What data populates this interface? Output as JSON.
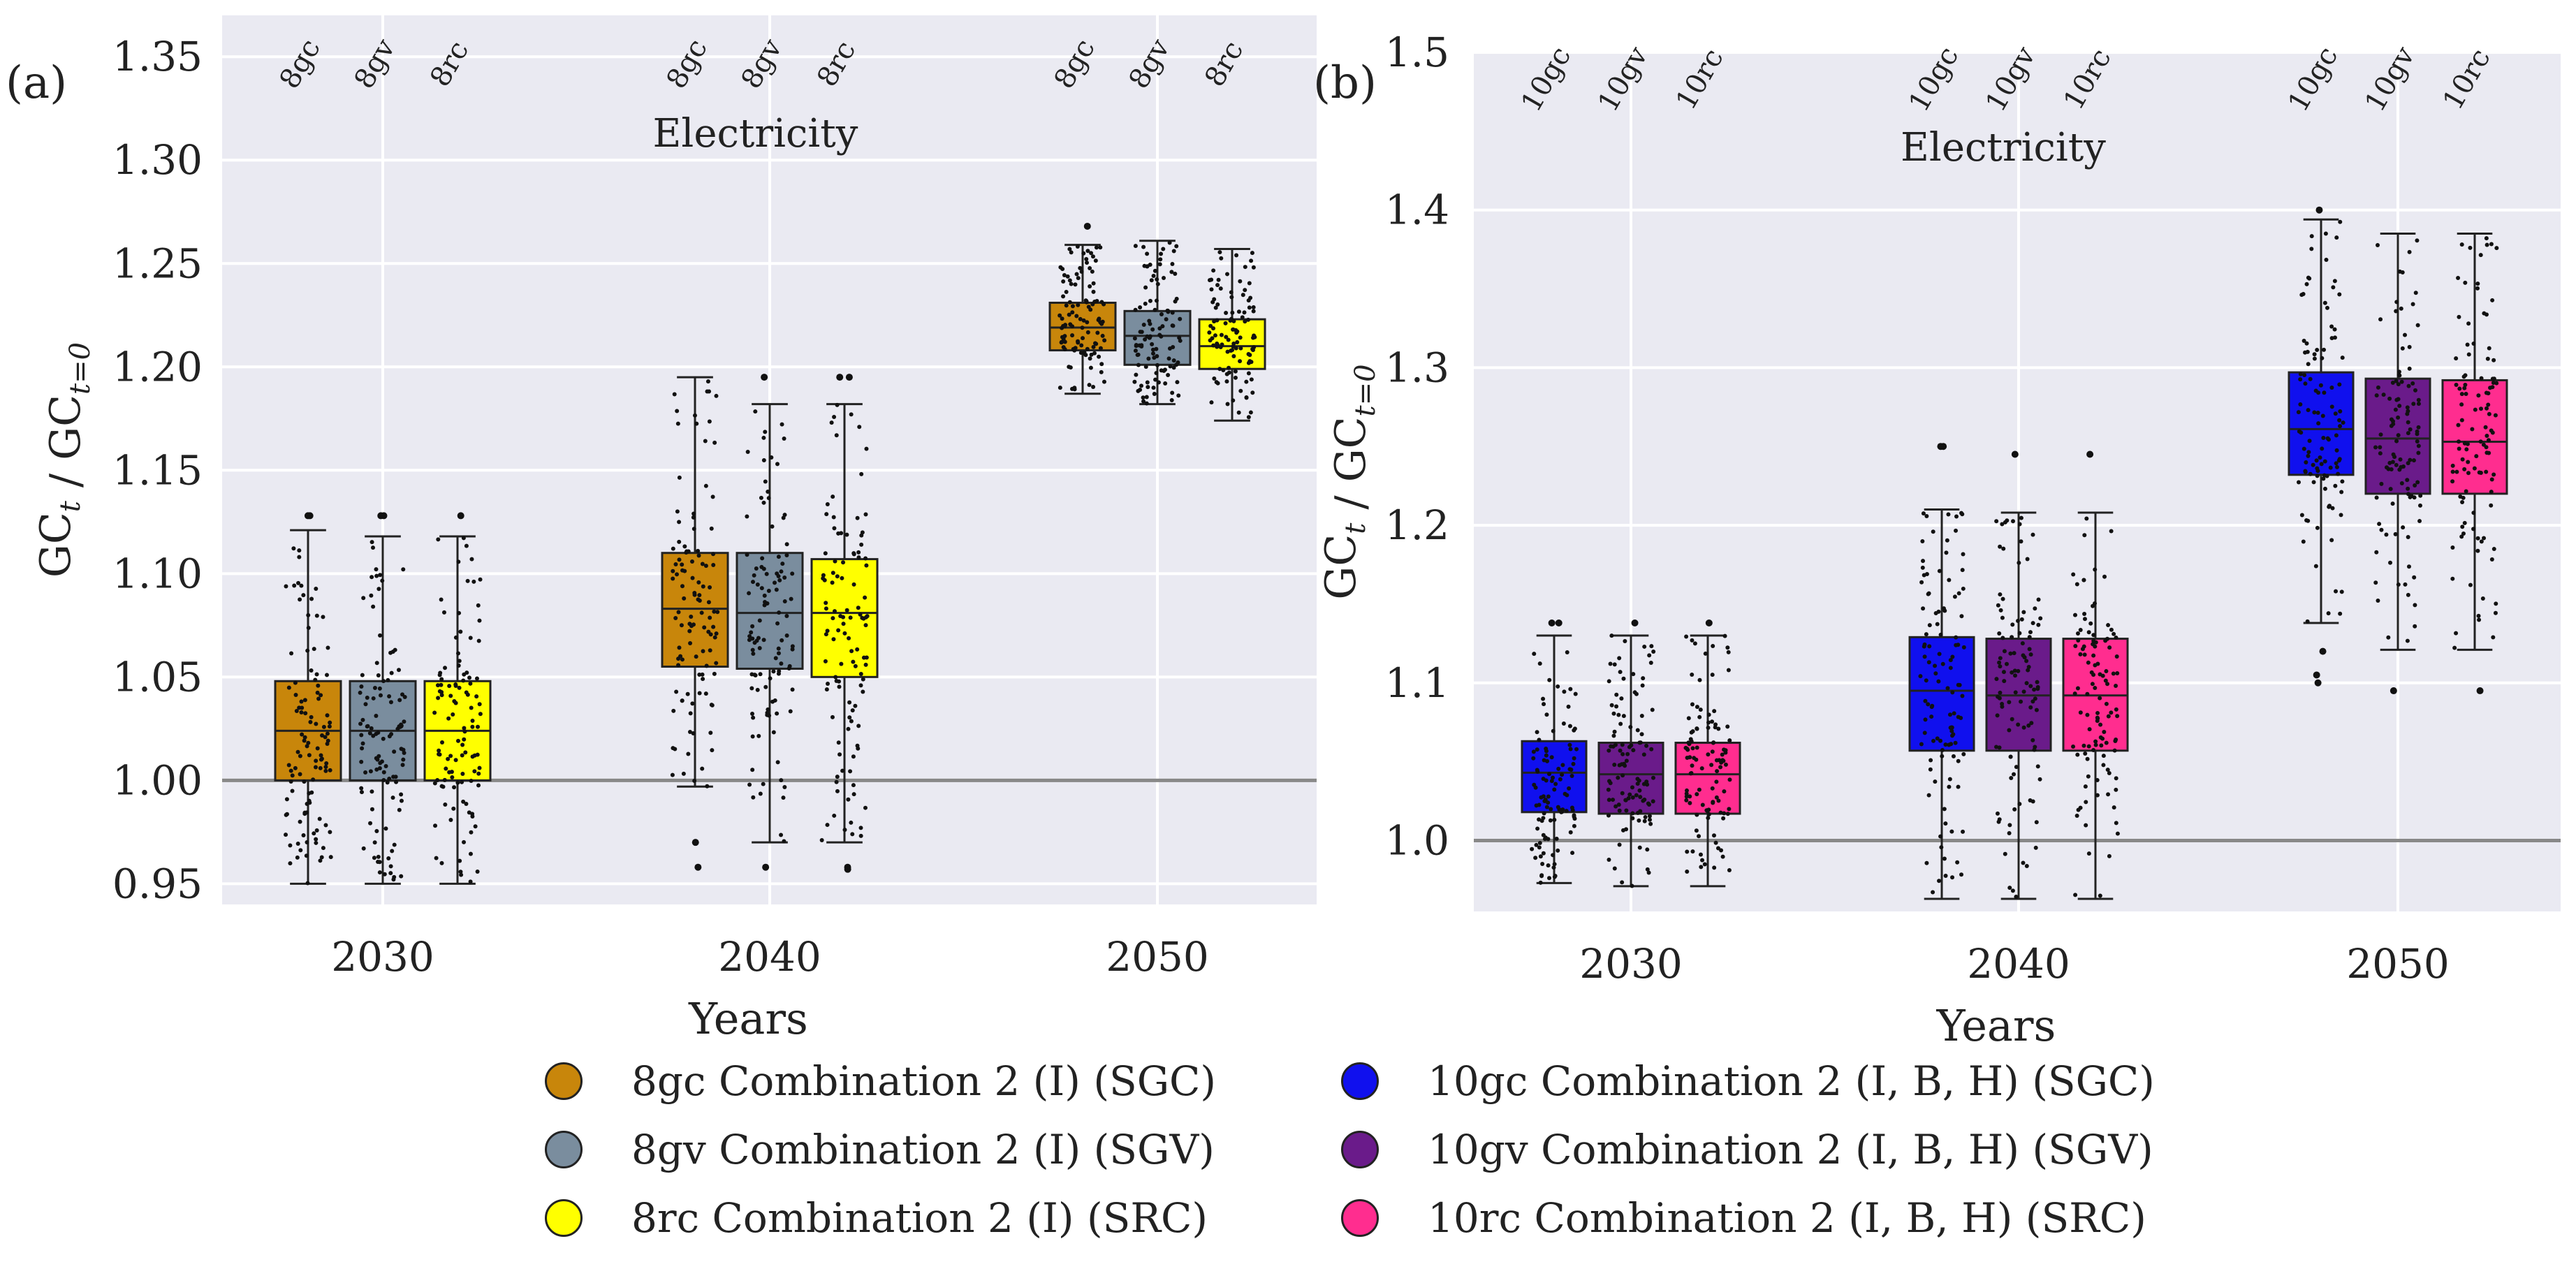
{
  "chart_data": [
    {
      "type": "box",
      "panel_label": "(a)",
      "title": "Electricity",
      "xlabel": "Years",
      "ylabel": "GC_t / GC_t=0",
      "ylim": [
        0.94,
        1.37
      ],
      "yticks": [
        "0.95",
        "1.00",
        "1.05",
        "1.10",
        "1.15",
        "1.20",
        "1.25",
        "1.30",
        "1.35"
      ],
      "reference_line": 1.0,
      "categories": [
        "2030",
        "2040",
        "2050"
      ],
      "series": [
        {
          "name": "8gc",
          "color": "#c8860b",
          "boxes": [
            {
              "whislo": 0.95,
              "q1": 1.0,
              "med": 1.024,
              "q3": 1.048,
              "whishi": 1.121,
              "fliers": [
                1.128,
                1.128
              ]
            },
            {
              "whislo": 0.997,
              "q1": 1.055,
              "med": 1.083,
              "q3": 1.11,
              "whishi": 1.195,
              "fliers": [
                0.97,
                0.958
              ]
            },
            {
              "whislo": 1.187,
              "q1": 1.208,
              "med": 1.219,
              "q3": 1.231,
              "whishi": 1.259,
              "fliers": [
                1.268
              ]
            }
          ]
        },
        {
          "name": "8gv",
          "color": "#7a8d9e",
          "boxes": [
            {
              "whislo": 0.95,
              "q1": 1.0,
              "med": 1.024,
              "q3": 1.048,
              "whishi": 1.118,
              "fliers": [
                1.128,
                1.128
              ]
            },
            {
              "whislo": 0.97,
              "q1": 1.054,
              "med": 1.081,
              "q3": 1.11,
              "whishi": 1.182,
              "fliers": [
                1.195,
                0.958
              ]
            },
            {
              "whislo": 1.182,
              "q1": 1.201,
              "med": 1.215,
              "q3": 1.227,
              "whishi": 1.261,
              "fliers": []
            }
          ]
        },
        {
          "name": "8rc",
          "color": "#ffff00",
          "boxes": [
            {
              "whislo": 0.95,
              "q1": 1.0,
              "med": 1.024,
              "q3": 1.048,
              "whishi": 1.118,
              "fliers": [
                1.128
              ]
            },
            {
              "whislo": 0.97,
              "q1": 1.05,
              "med": 1.081,
              "q3": 1.107,
              "whishi": 1.182,
              "fliers": [
                1.195,
                1.195,
                0.958,
                0.957
              ]
            },
            {
              "whislo": 1.174,
              "q1": 1.199,
              "med": 1.21,
              "q3": 1.223,
              "whishi": 1.257,
              "fliers": []
            }
          ]
        }
      ],
      "top_labels": [
        "8gc",
        "8gv",
        "8rc",
        "8gc",
        "8gv",
        "8rc",
        "8gc",
        "8gv",
        "8rc"
      ]
    },
    {
      "type": "box",
      "panel_label": "(b)",
      "title": "Electricity",
      "xlabel": "Years",
      "ylabel": "GC_t / GC_t=0",
      "ylim": [
        0.955,
        1.5
      ],
      "yticks": [
        "1.0",
        "1.1",
        "1.2",
        "1.3",
        "1.4",
        "1.5"
      ],
      "reference_line": 1.0,
      "categories": [
        "2030",
        "2040",
        "2050"
      ],
      "series": [
        {
          "name": "10gc",
          "color": "#1010ee",
          "boxes": [
            {
              "whislo": 0.973,
              "q1": 1.018,
              "med": 1.043,
              "q3": 1.063,
              "whishi": 1.13,
              "fliers": [
                1.138,
                1.138
              ]
            },
            {
              "whislo": 0.963,
              "q1": 1.057,
              "med": 1.095,
              "q3": 1.129,
              "whishi": 1.21,
              "fliers": [
                1.25,
                1.25
              ]
            },
            {
              "whislo": 1.138,
              "q1": 1.232,
              "med": 1.261,
              "q3": 1.297,
              "whishi": 1.394,
              "fliers": [
                1.4,
                1.12,
                1.105,
                1.1
              ]
            }
          ]
        },
        {
          "name": "10gv",
          "color": "#6a1b8a",
          "boxes": [
            {
              "whislo": 0.971,
              "q1": 1.017,
              "med": 1.042,
              "q3": 1.062,
              "whishi": 1.13,
              "fliers": [
                1.138
              ]
            },
            {
              "whislo": 0.963,
              "q1": 1.057,
              "med": 1.092,
              "q3": 1.128,
              "whishi": 1.208,
              "fliers": [
                1.245
              ]
            },
            {
              "whislo": 1.121,
              "q1": 1.22,
              "med": 1.255,
              "q3": 1.293,
              "whishi": 1.385,
              "fliers": [
                1.095
              ]
            }
          ]
        },
        {
          "name": "10rc",
          "color": "#ff2d8f",
          "boxes": [
            {
              "whislo": 0.971,
              "q1": 1.017,
              "med": 1.042,
              "q3": 1.062,
              "whishi": 1.13,
              "fliers": [
                1.138
              ]
            },
            {
              "whislo": 0.963,
              "q1": 1.057,
              "med": 1.092,
              "q3": 1.128,
              "whishi": 1.208,
              "fliers": [
                1.245
              ]
            },
            {
              "whislo": 1.121,
              "q1": 1.22,
              "med": 1.253,
              "q3": 1.292,
              "whishi": 1.385,
              "fliers": [
                1.095
              ]
            }
          ]
        }
      ],
      "top_labels": [
        "10gc",
        "10gv",
        "10rc",
        "10gc",
        "10gv",
        "10rc",
        "10gc",
        "10gv",
        "10rc"
      ]
    }
  ],
  "legend": [
    {
      "label": "8gc Combination 2 (I) (SGC)",
      "color": "#c8860b"
    },
    {
      "label": "8gv Combination 2 (I) (SGV)",
      "color": "#7a8d9e"
    },
    {
      "label": "8rc Combination 2 (I) (SRC)",
      "color": "#ffff00"
    },
    {
      "label": "10gc Combination 2 (I, B, H) (SGC)",
      "color": "#1010ee"
    },
    {
      "label": "10gv Combination 2 (I, B, H) (SGV)",
      "color": "#6a1b8a"
    },
    {
      "label": "10rc Combination 2 (I, B, H) (SRC)",
      "color": "#ff2d8f"
    }
  ],
  "colors": {
    "plot_background": "#eaeaf2",
    "grid": "#ffffff",
    "reference_line": "#888888",
    "box_edge": "#222222"
  }
}
